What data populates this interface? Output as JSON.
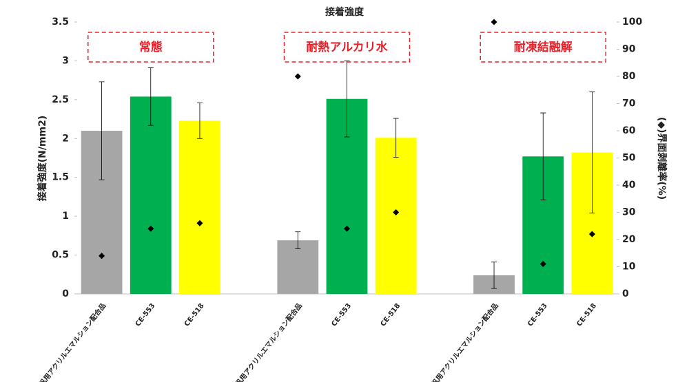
{
  "chart_data": {
    "type": "bar",
    "title": "接着強度",
    "ylabel": "接着強度(N/mm2)",
    "y2label": "(◆)界面剥離率(%)",
    "groups": [
      "常態",
      "耐熱アルカリ水",
      "耐凍結融解"
    ],
    "categories": [
      "汎用アクリルエマルション配合品",
      "CE-553",
      "CE-518",
      "汎用アクリルエマルション配合品",
      "CE-553",
      "CE-518",
      "汎用アクリルエマルション配合品",
      "CE-553",
      "CE-518"
    ],
    "series": [
      {
        "type": "bar",
        "colors": [
          "#a6a6a6",
          "#00b050",
          "#ffff00",
          "#a6a6a6",
          "#00b050",
          "#ffff00",
          "#a6a6a6",
          "#00b050",
          "#ffff00"
        ],
        "values": [
          2.1,
          2.54,
          2.23,
          0.69,
          2.51,
          2.01,
          0.24,
          1.77,
          1.82
        ],
        "errors": [
          0.63,
          0.37,
          0.23,
          0.11,
          0.49,
          0.25,
          0.17,
          0.56,
          0.78
        ]
      },
      {
        "type": "scatter",
        "axis": "y2",
        "color": "#000000",
        "values": [
          14,
          24,
          26,
          80,
          24,
          30,
          100,
          11,
          22
        ]
      }
    ],
    "ylim": [
      0,
      3.5
    ],
    "yticks": [
      0,
      0.5,
      1,
      1.5,
      2,
      2.5,
      3,
      3.5
    ],
    "y2lim": [
      0,
      100
    ],
    "y2ticks": [
      0,
      10,
      20,
      30,
      40,
      50,
      60,
      70,
      80,
      90,
      100
    ]
  }
}
